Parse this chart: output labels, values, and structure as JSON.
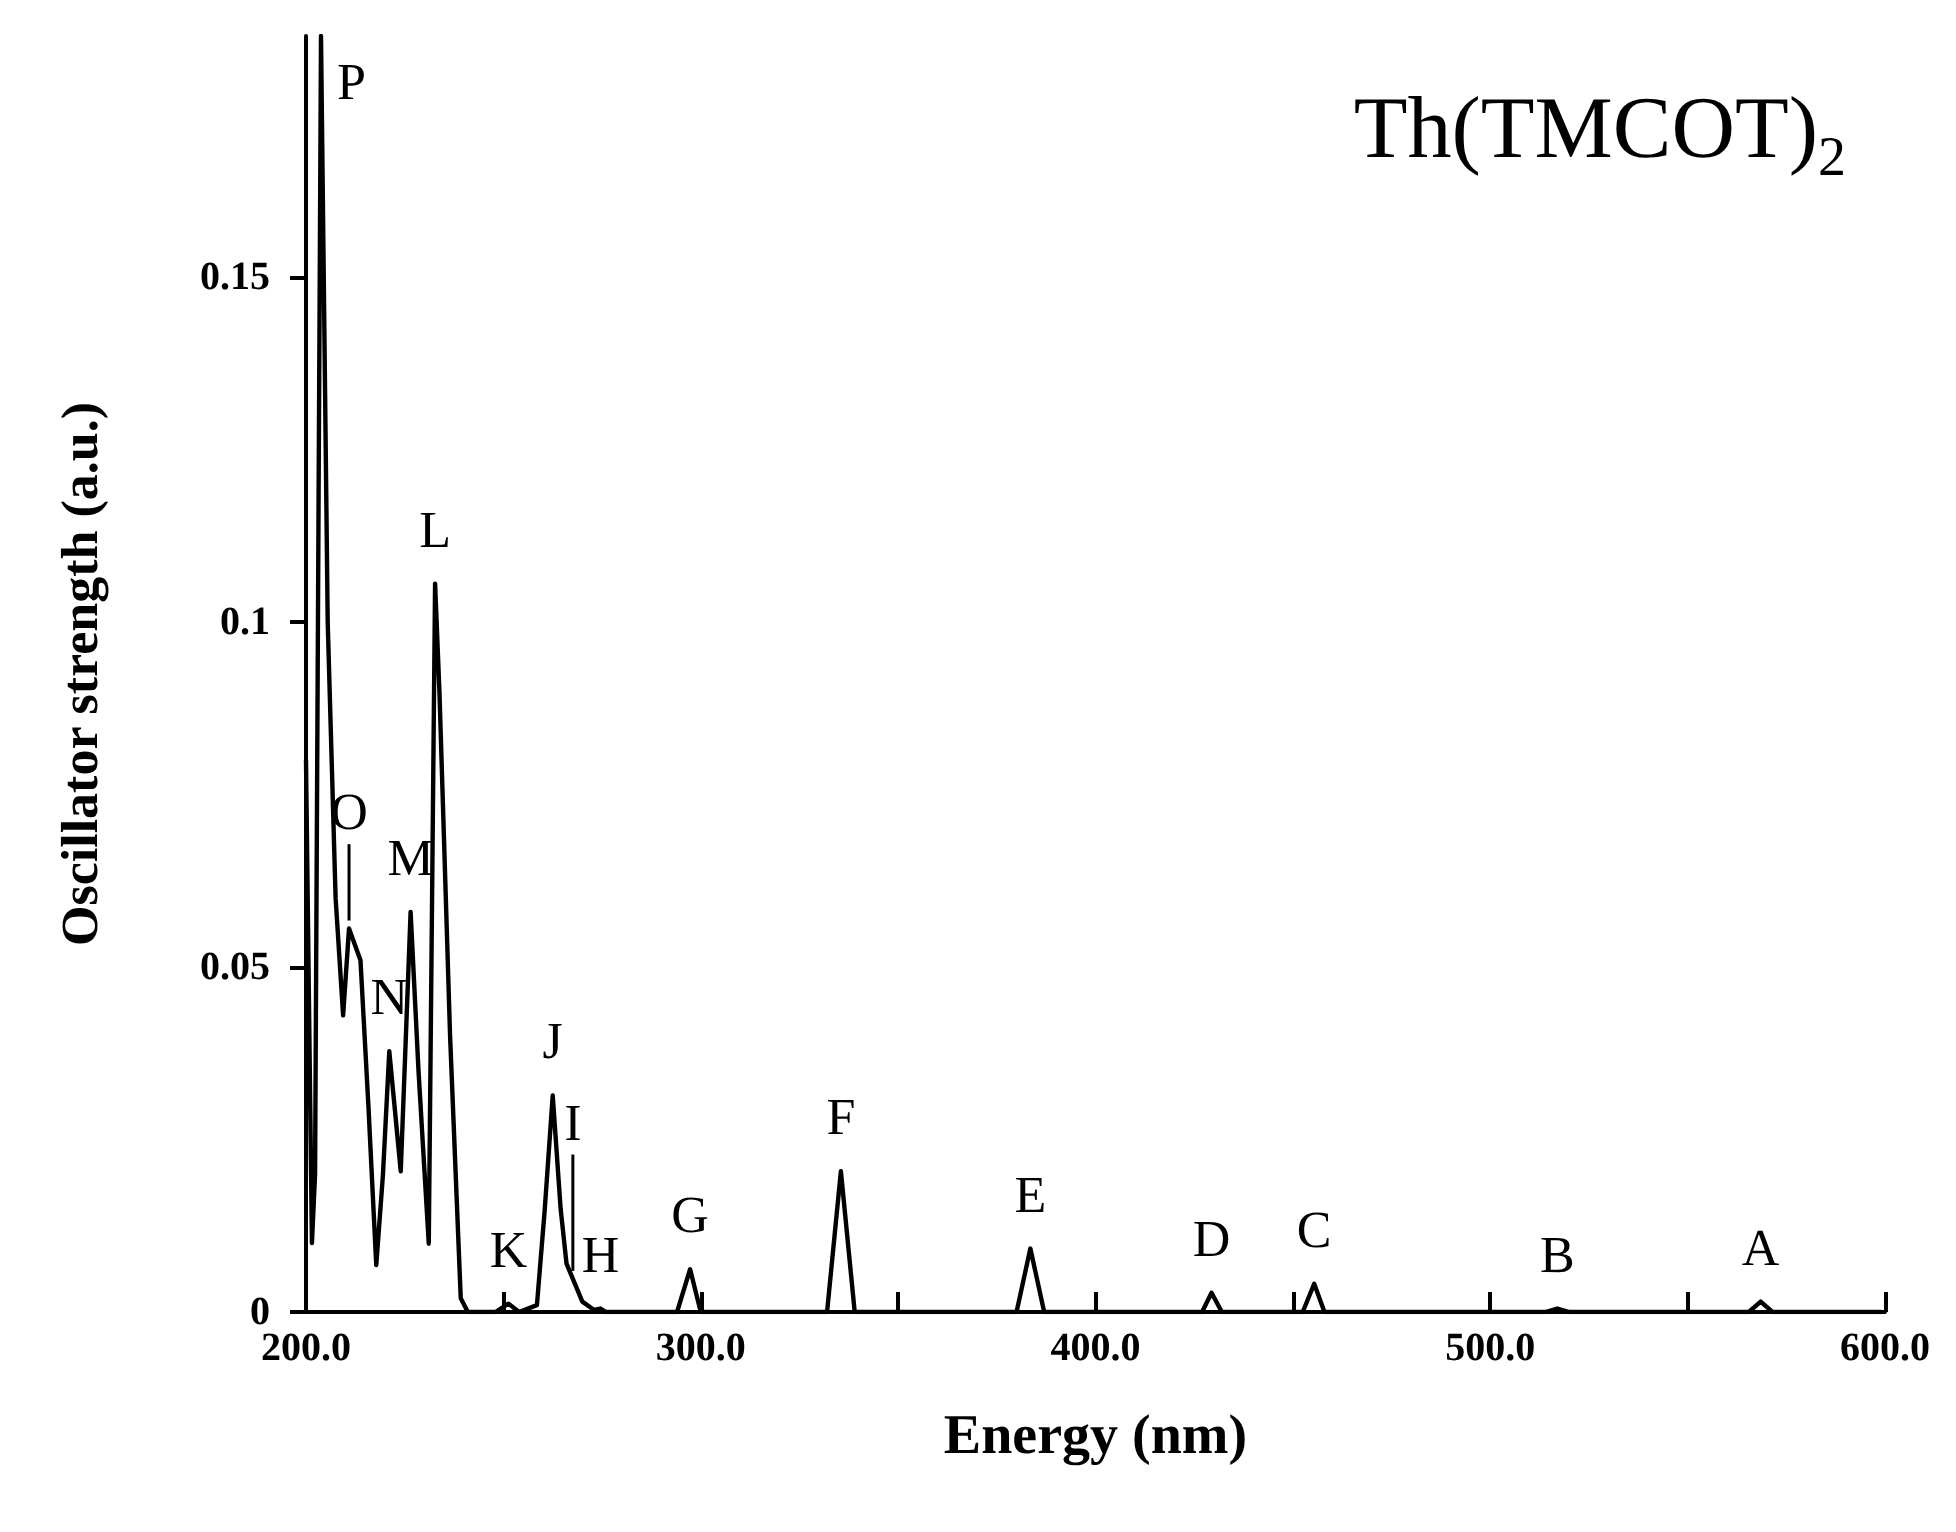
{
  "chart_data": {
    "type": "line",
    "title": "Th(TMCOT)$_{2}$",
    "xlabel": "Energy (nm)",
    "ylabel": "Oscillator strength (a.u.)",
    "x": [
      200,
      201.5,
      202.3,
      203.8,
      205.5,
      207.5,
      209.4,
      210.9,
      213.8,
      215.8,
      217.8,
      219.5,
      221.1,
      224,
      226.5,
      228.5,
      231.1,
      232.7,
      233.8,
      236.5,
      239.2,
      241,
      248,
      251.3,
      254,
      258.5,
      260.5,
      262.5,
      264.5,
      266,
      267.6,
      270,
      273,
      274.6,
      276,
      294,
      297.3,
      300,
      332,
      335.5,
      339,
      380,
      383.5,
      387,
      427,
      429.4,
      432,
      452.5,
      455.4,
      458,
      514,
      517,
      520,
      565.5,
      568.5,
      571.5,
      599
    ],
    "series": [
      {
        "color": "#000000",
        "values": [
          0.08,
          0.01,
          0.02,
          0.185,
          0.1,
          0.06,
          0.043,
          0.0556,
          0.051,
          0.03,
          0.0068,
          0.02,
          0.0378,
          0.0204,
          0.058,
          0.035,
          0.0099,
          0.1056,
          0.09,
          0.04,
          0.002,
          0,
          0,
          0.0012,
          0,
          0.001,
          0.015,
          0.0314,
          0.015,
          0.007,
          0.0048,
          0.0015,
          0.0003,
          0.0005,
          0,
          0,
          0.0062,
          0,
          0,
          0.0204,
          0,
          0,
          0.0092,
          0,
          0,
          0.0028,
          0,
          0,
          0.0041,
          0,
          0,
          0.0005,
          0,
          0,
          0.0015,
          0,
          0
        ]
      }
    ],
    "xlim": [
      200,
      600
    ],
    "ylim": [
      0,
      0.185
    ],
    "xticks": [
      {
        "value": 200,
        "label": "200.0"
      },
      {
        "value": 250,
        "label": null
      },
      {
        "value": 300,
        "label": "300.0"
      },
      {
        "value": 350,
        "label": null
      },
      {
        "value": 400,
        "label": "400.0"
      },
      {
        "value": 450,
        "label": null
      },
      {
        "value": 500,
        "label": "500.0"
      },
      {
        "value": 550,
        "label": null
      },
      {
        "value": 600,
        "label": "600.0"
      }
    ],
    "yticks": [
      0,
      0.05,
      0.1,
      0.15
    ],
    "annotations": [
      {
        "text": "P",
        "x": 203.8,
        "y": 0.185
      },
      {
        "text": "O",
        "x": 210.9,
        "y": 0.0556
      },
      {
        "text": "N",
        "x": 221.1,
        "y": 0.0378
      },
      {
        "text": "M",
        "x": 226.5,
        "y": 0.058
      },
      {
        "text": "L",
        "x": 232.7,
        "y": 0.1056
      },
      {
        "text": "K",
        "x": 251.3,
        "y": 0.0012
      },
      {
        "text": "J",
        "x": 262.5,
        "y": 0.0314
      },
      {
        "text": "I",
        "x": 267.6,
        "y": 0.0048
      },
      {
        "text": "H",
        "x": 274.6,
        "y": 0.0005
      },
      {
        "text": "G",
        "x": 297.3,
        "y": 0.0062
      },
      {
        "text": "F",
        "x": 335.5,
        "y": 0.0204
      },
      {
        "text": "E",
        "x": 383.5,
        "y": 0.0092
      },
      {
        "text": "D",
        "x": 429.4,
        "y": 0.0028
      },
      {
        "text": "C",
        "x": 455.4,
        "y": 0.0041
      },
      {
        "text": "B",
        "x": 517,
        "y": 0.0005
      },
      {
        "text": "A",
        "x": 568.5,
        "y": 0.0015
      }
    ],
    "grid": false,
    "marker": "none",
    "line_style": "solid"
  }
}
